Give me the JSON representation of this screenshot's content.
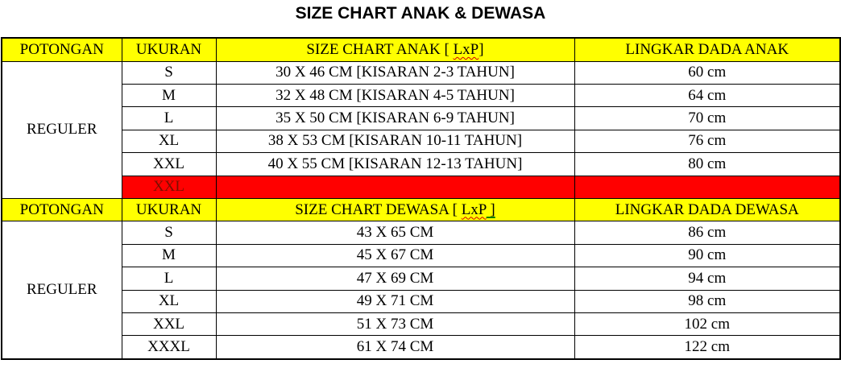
{
  "title": "SIZE CHART ANAK & DEWASA",
  "colors": {
    "header_bg": "#ffff00",
    "highlight_bg": "#ff0000",
    "highlight_text": "#7b0f00",
    "border": "#000000",
    "spellcheck_red": "#d40000",
    "grammar_green": "#008000"
  },
  "anak": {
    "header": {
      "potongan": "POTONGAN",
      "ukuran": "UKURAN",
      "size_prefix": "SIZE CHART ANAK [ ",
      "size_misspelled": "LxP",
      "size_suffix": "]",
      "lingkar": "LINGKAR DADA ANAK"
    },
    "potongan_value": "REGULER",
    "rows": [
      {
        "ukuran": "S",
        "size": "30 X 46 CM [KISARAN 2-3 TAHUN]",
        "lingkar": "60 cm"
      },
      {
        "ukuran": "M",
        "size": "32 X 48 CM [KISARAN 4-5 TAHUN]",
        "lingkar": "64 cm"
      },
      {
        "ukuran": "L",
        "size": "35 X 50 CM [KISARAN 6-9 TAHUN]",
        "lingkar": "70 cm"
      },
      {
        "ukuran": "XL",
        "size": "38 X 53 CM [KISARAN 10-11 TAHUN]",
        "lingkar": "76 cm"
      },
      {
        "ukuran": "XXL",
        "size": "40 X 55 CM [KISARAN 12-13 TAHUN]",
        "lingkar": "80 cm"
      }
    ],
    "highlight_row": {
      "ukuran": "XXL",
      "size": "",
      "lingkar": ""
    }
  },
  "dewasa": {
    "header": {
      "potongan": "POTONGAN",
      "ukuran": "UKURAN",
      "size_prefix": "SIZE CHART DEWASA [ ",
      "size_misspelled": "LxP",
      "size_suffix": " ]",
      "lingkar": "LINGKAR DADA DEWASA"
    },
    "potongan_value": "REGULER",
    "rows": [
      {
        "ukuran": "S",
        "size": "43 X 65 CM",
        "lingkar": "86 cm"
      },
      {
        "ukuran": "M",
        "size": "45 X 67 CM",
        "lingkar": "90 cm"
      },
      {
        "ukuran": "L",
        "size": "47 X 69 CM",
        "lingkar": "94 cm"
      },
      {
        "ukuran": "XL",
        "size": "49 X 71 CM",
        "lingkar": "98 cm"
      },
      {
        "ukuran": "XXL",
        "size": "51 X 73 CM",
        "lingkar": "102 cm"
      },
      {
        "ukuran": "XXXL",
        "size": "61 X 74 CM",
        "lingkar": "122 cm"
      }
    ]
  }
}
